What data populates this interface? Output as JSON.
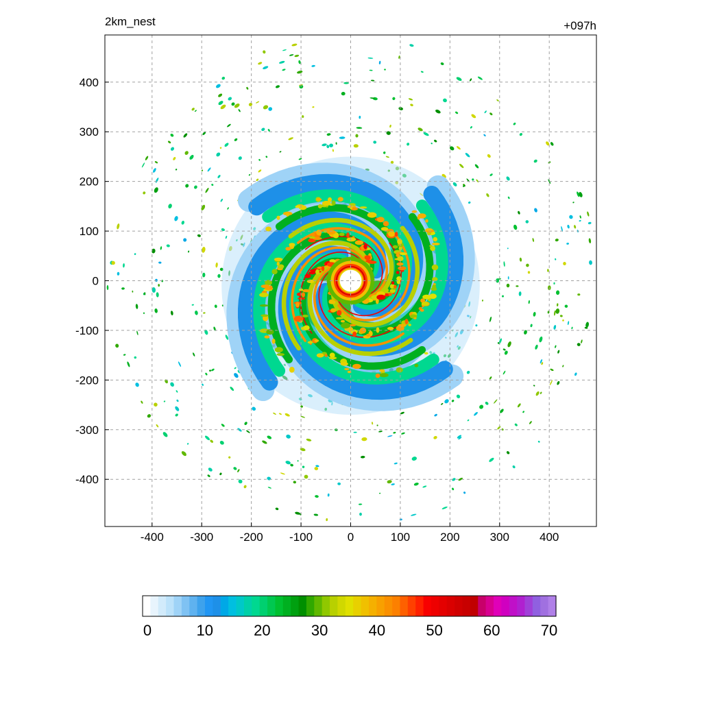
{
  "chart_data": {
    "type": "heatmap",
    "title_left": "2km_nest",
    "title_right": "+097h",
    "xlabel": "",
    "ylabel": "",
    "xlim": [
      -495,
      495
    ],
    "ylim": [
      -495,
      495
    ],
    "x_ticks": [
      -400,
      -300,
      -200,
      -100,
      0,
      100,
      200,
      300,
      400
    ],
    "y_ticks": [
      400,
      300,
      200,
      100,
      0,
      -100,
      -200,
      -300,
      -400
    ],
    "grid": true,
    "colorbar": {
      "range": [
        0,
        70
      ],
      "ticks": [
        0,
        10,
        20,
        30,
        40,
        50,
        60,
        70
      ],
      "colors": [
        "#ffffff",
        "#e8f4fd",
        "#d2ebfb",
        "#bce2fa",
        "#9fd3f7",
        "#7fc2f3",
        "#5fb2ef",
        "#3ea2ec",
        "#2196f3",
        "#1e90e8",
        "#00a8e6",
        "#00bfe0",
        "#00c8c8",
        "#00d0a8",
        "#00d890",
        "#00d070",
        "#00c850",
        "#00c030",
        "#00b020",
        "#00a010",
        "#008f00",
        "#30a800",
        "#60b800",
        "#90c800",
        "#b8d000",
        "#d0d800",
        "#e0e000",
        "#e8d000",
        "#f0c000",
        "#f5b000",
        "#f8a000",
        "#fa9000",
        "#fc8000",
        "#fe6000",
        "#ff4000",
        "#ff2000",
        "#f80000",
        "#ee0000",
        "#e40000",
        "#da0000",
        "#d00000",
        "#c80000",
        "#c00000",
        "#c8006a",
        "#d80090",
        "#e000b8",
        "#d000c0",
        "#c010c8",
        "#b020d0",
        "#a040d8",
        "#9060e0",
        "#a070e0",
        "#b080e8"
      ]
    },
    "storm": {
      "eye_radius_km": 22,
      "eyewall_peak": 52,
      "outer_extent_km": 270
    }
  }
}
